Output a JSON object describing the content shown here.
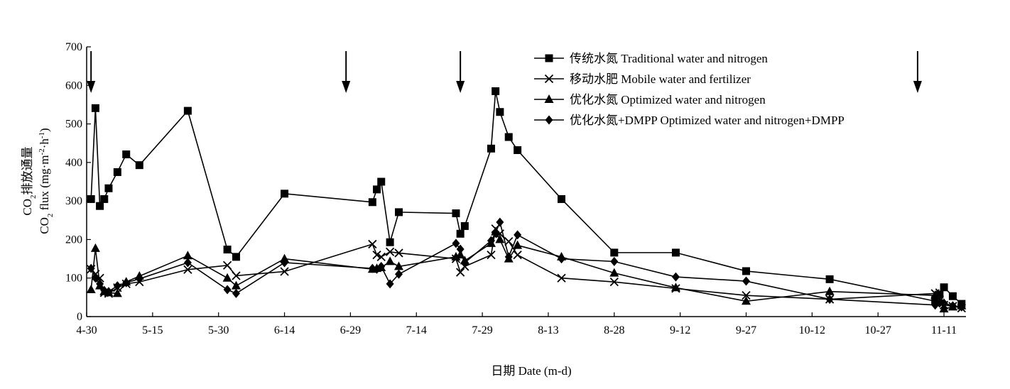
{
  "chart_data": {
    "type": "line",
    "title": "",
    "xlabel": "日期 Date (m-d)",
    "ylabel_cn": "CO2排放通量",
    "ylabel_en": "CO2 flux (mg·m-2·h-1)",
    "ylim": [
      0,
      700
    ],
    "yticks": [
      0,
      100,
      200,
      300,
      400,
      500,
      600,
      700
    ],
    "xlim": [
      "04-30",
      "11-16"
    ],
    "xticks": [
      {
        "date": "04-30",
        "label": "4-30"
      },
      {
        "date": "05-15",
        "label": "5-15"
      },
      {
        "date": "05-30",
        "label": "5-30"
      },
      {
        "date": "06-14",
        "label": "6-14"
      },
      {
        "date": "06-29",
        "label": "6-29"
      },
      {
        "date": "07-14",
        "label": "7-14"
      },
      {
        "date": "07-29",
        "label": "7-29"
      },
      {
        "date": "08-13",
        "label": "8-13"
      },
      {
        "date": "08-28",
        "label": "8-28"
      },
      {
        "date": "09-12",
        "label": "9-12"
      },
      {
        "date": "09-27",
        "label": "9-27"
      },
      {
        "date": "10-12",
        "label": "10-12"
      },
      {
        "date": "10-27",
        "label": "10-27"
      },
      {
        "date": "11-11",
        "label": "11-11"
      }
    ],
    "arrows": [
      "05-01",
      "06-28",
      "07-24",
      "11-05"
    ],
    "legend_position": "top-right",
    "grid": false,
    "series": [
      {
        "name": "传统水氮 Traditional water and nitrogen",
        "marker": "square",
        "points": [
          {
            "x": "05-01",
            "y": 305
          },
          {
            "x": "05-02",
            "y": 541
          },
          {
            "x": "05-03",
            "y": 287
          },
          {
            "x": "05-04",
            "y": 305
          },
          {
            "x": "05-05",
            "y": 333
          },
          {
            "x": "05-07",
            "y": 375
          },
          {
            "x": "05-09",
            "y": 421
          },
          {
            "x": "05-12",
            "y": 393
          },
          {
            "x": "05-23",
            "y": 534
          },
          {
            "x": "06-01",
            "y": 174
          },
          {
            "x": "06-03",
            "y": 155
          },
          {
            "x": "06-14",
            "y": 319
          },
          {
            "x": "07-04",
            "y": 297
          },
          {
            "x": "07-05",
            "y": 330
          },
          {
            "x": "07-06",
            "y": 350
          },
          {
            "x": "07-08",
            "y": 193
          },
          {
            "x": "07-10",
            "y": 271
          },
          {
            "x": "07-23",
            "y": 268
          },
          {
            "x": "07-24",
            "y": 215
          },
          {
            "x": "07-25",
            "y": 235
          },
          {
            "x": "07-31",
            "y": 436
          },
          {
            "x": "08-01",
            "y": 585
          },
          {
            "x": "08-02",
            "y": 531
          },
          {
            "x": "08-04",
            "y": 466
          },
          {
            "x": "08-06",
            "y": 432
          },
          {
            "x": "08-16",
            "y": 305
          },
          {
            "x": "08-28",
            "y": 166
          },
          {
            "x": "09-11",
            "y": 166
          },
          {
            "x": "09-27",
            "y": 118
          },
          {
            "x": "10-16",
            "y": 97
          },
          {
            "x": "11-09",
            "y": 40
          },
          {
            "x": "11-10",
            "y": 57
          },
          {
            "x": "11-11",
            "y": 76
          },
          {
            "x": "11-13",
            "y": 53
          },
          {
            "x": "11-15",
            "y": 33
          }
        ]
      },
      {
        "name": "移动水肥 Mobile water and fertilizer",
        "marker": "cross",
        "points": [
          {
            "x": "05-01",
            "y": 123
          },
          {
            "x": "05-02",
            "y": 110
          },
          {
            "x": "05-03",
            "y": 100
          },
          {
            "x": "05-04",
            "y": 62
          },
          {
            "x": "05-05",
            "y": 60
          },
          {
            "x": "05-07",
            "y": 75
          },
          {
            "x": "05-09",
            "y": 85
          },
          {
            "x": "05-12",
            "y": 90
          },
          {
            "x": "05-23",
            "y": 122
          },
          {
            "x": "06-01",
            "y": 133
          },
          {
            "x": "06-03",
            "y": 106
          },
          {
            "x": "06-14",
            "y": 117
          },
          {
            "x": "07-04",
            "y": 188
          },
          {
            "x": "07-05",
            "y": 160
          },
          {
            "x": "07-06",
            "y": 155
          },
          {
            "x": "07-08",
            "y": 168
          },
          {
            "x": "07-10",
            "y": 165
          },
          {
            "x": "07-23",
            "y": 150
          },
          {
            "x": "07-24",
            "y": 115
          },
          {
            "x": "07-25",
            "y": 130
          },
          {
            "x": "07-31",
            "y": 160
          },
          {
            "x": "08-01",
            "y": 228
          },
          {
            "x": "08-02",
            "y": 215
          },
          {
            "x": "08-04",
            "y": 195
          },
          {
            "x": "08-06",
            "y": 160
          },
          {
            "x": "08-16",
            "y": 100
          },
          {
            "x": "08-28",
            "y": 90
          },
          {
            "x": "09-11",
            "y": 73
          },
          {
            "x": "09-27",
            "y": 55
          },
          {
            "x": "10-16",
            "y": 45
          },
          {
            "x": "11-09",
            "y": 60
          },
          {
            "x": "11-10",
            "y": 62
          },
          {
            "x": "11-11",
            "y": 30
          },
          {
            "x": "11-13",
            "y": 27
          },
          {
            "x": "11-15",
            "y": 22
          }
        ]
      },
      {
        "name": "优化水氮 Optimized water and nitrogen",
        "marker": "triangle",
        "points": [
          {
            "x": "05-01",
            "y": 70
          },
          {
            "x": "05-02",
            "y": 177
          },
          {
            "x": "05-03",
            "y": 80
          },
          {
            "x": "05-04",
            "y": 65
          },
          {
            "x": "05-05",
            "y": 62
          },
          {
            "x": "05-07",
            "y": 60
          },
          {
            "x": "05-09",
            "y": 90
          },
          {
            "x": "05-12",
            "y": 105
          },
          {
            "x": "05-23",
            "y": 158
          },
          {
            "x": "06-01",
            "y": 100
          },
          {
            "x": "06-03",
            "y": 80
          },
          {
            "x": "06-14",
            "y": 150
          },
          {
            "x": "07-04",
            "y": 123
          },
          {
            "x": "07-05",
            "y": 125
          },
          {
            "x": "07-06",
            "y": 127
          },
          {
            "x": "07-08",
            "y": 143
          },
          {
            "x": "07-10",
            "y": 130
          },
          {
            "x": "07-23",
            "y": 155
          },
          {
            "x": "07-24",
            "y": 160
          },
          {
            "x": "07-25",
            "y": 145
          },
          {
            "x": "07-31",
            "y": 190
          },
          {
            "x": "08-01",
            "y": 220
          },
          {
            "x": "08-02",
            "y": 200
          },
          {
            "x": "08-04",
            "y": 150
          },
          {
            "x": "08-06",
            "y": 185
          },
          {
            "x": "08-16",
            "y": 155
          },
          {
            "x": "08-28",
            "y": 113
          },
          {
            "x": "09-11",
            "y": 75
          },
          {
            "x": "09-27",
            "y": 40
          },
          {
            "x": "10-16",
            "y": 65
          },
          {
            "x": "11-09",
            "y": 55
          },
          {
            "x": "11-10",
            "y": 40
          },
          {
            "x": "11-11",
            "y": 20
          },
          {
            "x": "11-13",
            "y": 25
          },
          {
            "x": "11-15",
            "y": 28
          }
        ]
      },
      {
        "name": "优化水氮+DMPP Optimized water and nitrogen+DMPP",
        "marker": "diamond",
        "points": [
          {
            "x": "05-01",
            "y": 125
          },
          {
            "x": "05-02",
            "y": 100
          },
          {
            "x": "05-03",
            "y": 85
          },
          {
            "x": "05-04",
            "y": 68
          },
          {
            "x": "05-05",
            "y": 65
          },
          {
            "x": "05-07",
            "y": 80
          },
          {
            "x": "05-09",
            "y": 88
          },
          {
            "x": "05-12",
            "y": 98
          },
          {
            "x": "05-23",
            "y": 140
          },
          {
            "x": "06-01",
            "y": 70
          },
          {
            "x": "06-03",
            "y": 60
          },
          {
            "x": "06-14",
            "y": 140
          },
          {
            "x": "07-04",
            "y": 125
          },
          {
            "x": "07-05",
            "y": 123
          },
          {
            "x": "07-06",
            "y": 130
          },
          {
            "x": "07-08",
            "y": 85
          },
          {
            "x": "07-10",
            "y": 110
          },
          {
            "x": "07-23",
            "y": 190
          },
          {
            "x": "07-24",
            "y": 175
          },
          {
            "x": "07-25",
            "y": 140
          },
          {
            "x": "07-31",
            "y": 197
          },
          {
            "x": "08-01",
            "y": 217
          },
          {
            "x": "08-02",
            "y": 245
          },
          {
            "x": "08-04",
            "y": 155
          },
          {
            "x": "08-06",
            "y": 212
          },
          {
            "x": "08-16",
            "y": 150
          },
          {
            "x": "08-28",
            "y": 143
          },
          {
            "x": "09-11",
            "y": 103
          },
          {
            "x": "09-27",
            "y": 92
          },
          {
            "x": "10-16",
            "y": 45
          },
          {
            "x": "11-09",
            "y": 30
          },
          {
            "x": "11-10",
            "y": 35
          },
          {
            "x": "11-11",
            "y": 35
          },
          {
            "x": "11-13",
            "y": 28
          },
          {
            "x": "11-15",
            "y": 25
          }
        ]
      }
    ]
  }
}
